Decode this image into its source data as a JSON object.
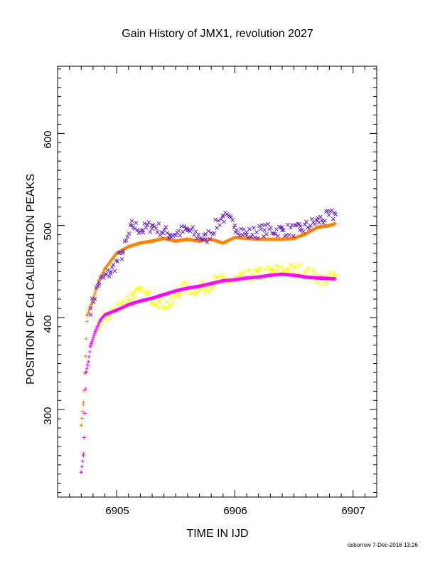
{
  "chart_data": {
    "type": "scatter",
    "title": "Gain History of JMX1, revolution 2027",
    "xlabel": "TIME IN IJD",
    "ylabel": "POSITION OF Cd CALIBRATION PEAKS",
    "xlim": [
      6904.5,
      6907.2
    ],
    "ylim": [
      205,
      673
    ],
    "x_ticks": [
      "6905",
      "6906",
      "6907"
    ],
    "y_ticks": [
      "300",
      "400",
      "500",
      "600"
    ],
    "grid": false,
    "legend": "none",
    "series": [
      {
        "color": "#ff8000",
        "marker": "plus",
        "x": [
          6904.7,
          6904.72,
          6904.75,
          6904.8,
          6904.85,
          6904.9,
          6905.0,
          6905.1,
          6905.2,
          6905.3,
          6905.4,
          6905.5,
          6905.6,
          6905.7,
          6905.8,
          6905.9,
          6906.0,
          6906.1,
          6906.2,
          6906.3,
          6906.4,
          6906.5,
          6906.6,
          6906.7,
          6906.8,
          6906.85
        ],
        "y": [
          283,
          308,
          402,
          420,
          440,
          453,
          470,
          477,
          481,
          483,
          486,
          483,
          485,
          483,
          485,
          481,
          487,
          486,
          485,
          485,
          485,
          486,
          491,
          498,
          500,
          502
        ]
      },
      {
        "color": "#6a1fd0",
        "marker": "cross",
        "x": [
          6904.78,
          6904.85,
          6904.95,
          6905.05,
          6905.13,
          6905.22,
          6905.3,
          6905.45,
          6905.6,
          6905.75,
          6905.9,
          6906.0,
          6906.1,
          6906.25,
          6906.4,
          6906.55,
          6906.7,
          6906.85
        ],
        "y": [
          410,
          438,
          450,
          470,
          500,
          495,
          500,
          490,
          495,
          485,
          510,
          500,
          490,
          495,
          495,
          495,
          505,
          512
        ]
      },
      {
        "color": "#ffff00",
        "marker": "cross",
        "x": [
          6904.85,
          6904.95,
          6905.05,
          6905.15,
          6905.25,
          6905.35,
          6905.45,
          6905.55,
          6905.7,
          6905.85,
          6906.0,
          6906.15,
          6906.3,
          6906.45,
          6906.6,
          6906.75,
          6906.85
        ],
        "y": [
          392,
          405,
          415,
          427,
          425,
          418,
          413,
          432,
          430,
          440,
          440,
          446,
          450,
          452,
          450,
          440,
          445
        ]
      },
      {
        "color": "#ff00ff",
        "marker": "plus",
        "x": [
          6904.7,
          6904.72,
          6904.74,
          6904.76,
          6904.78,
          6904.82,
          6904.86,
          6904.9,
          6905.0,
          6905.1,
          6905.2,
          6905.3,
          6905.4,
          6905.5,
          6905.6,
          6905.7,
          6905.8,
          6905.9,
          6906.0,
          6906.1,
          6906.2,
          6906.3,
          6906.4,
          6906.5,
          6906.6,
          6906.7,
          6906.85
        ],
        "y": [
          232,
          252,
          340,
          352,
          370,
          385,
          397,
          403,
          408,
          414,
          418,
          421,
          425,
          429,
          432,
          434,
          437,
          440,
          441,
          443,
          444,
          446,
          447,
          446,
          444,
          443,
          442
        ]
      }
    ]
  },
  "footer": "oxborrow  7-Dec-2018 13:26"
}
